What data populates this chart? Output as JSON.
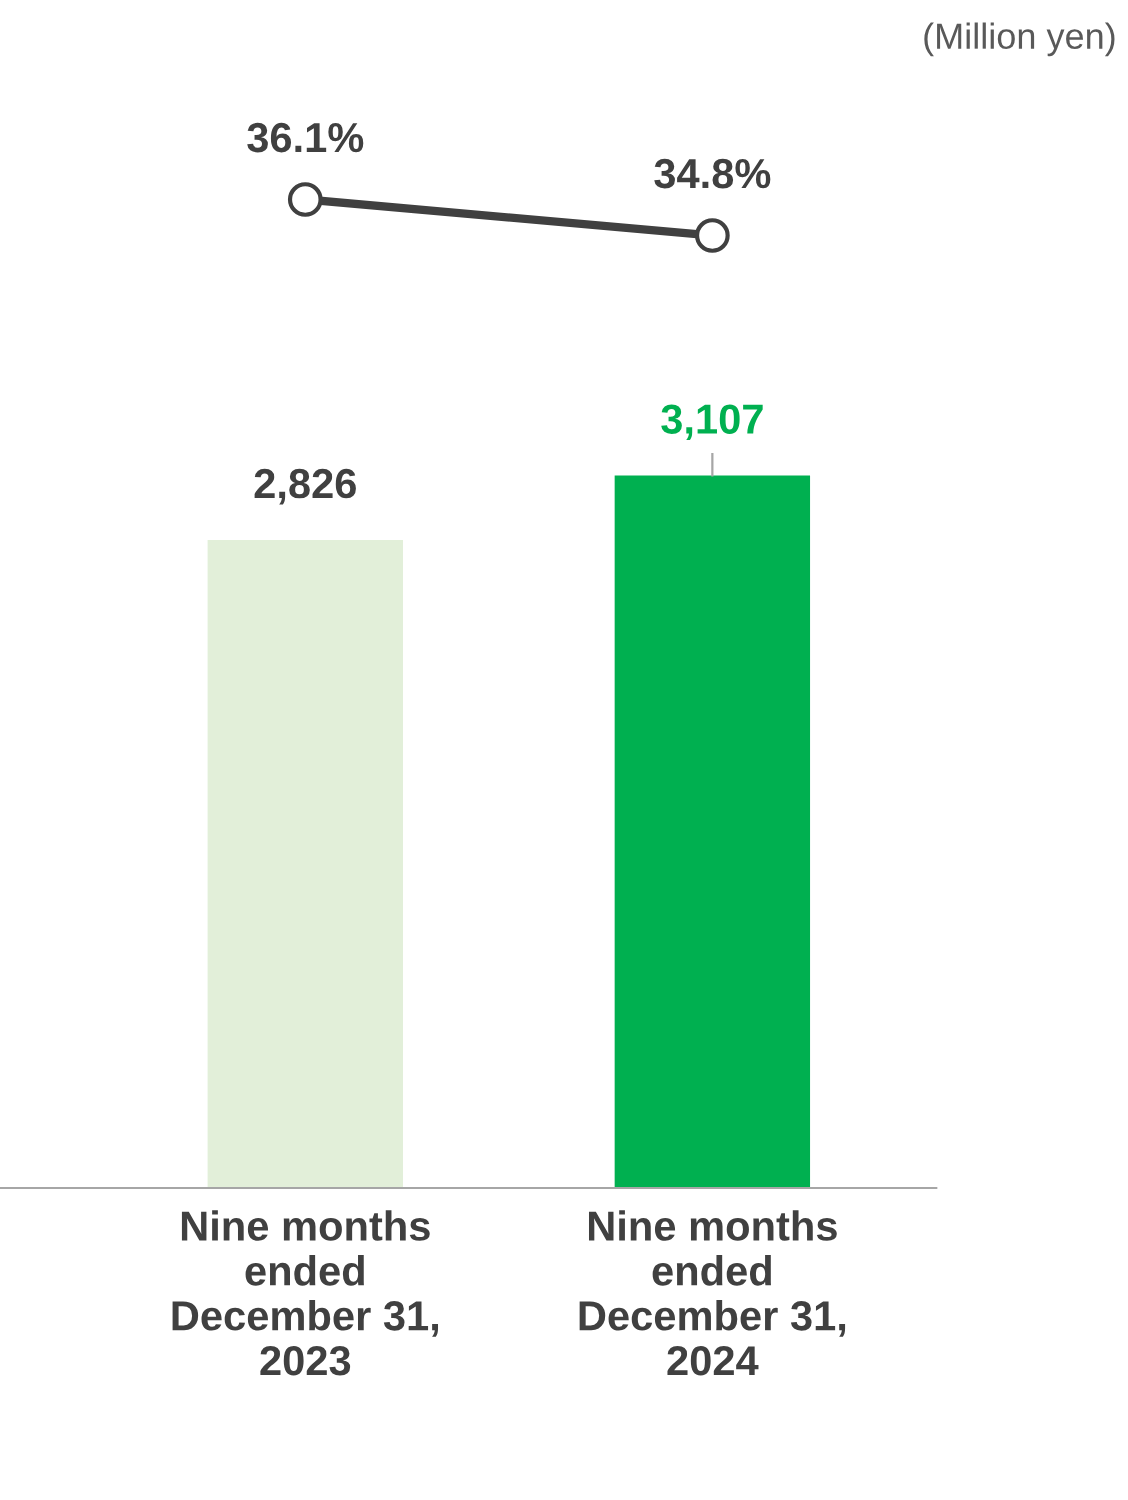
{
  "chart_data": [
    {
      "type": "line",
      "categories": [
        null,
        null
      ],
      "series": [
        {
          "color": "#404040",
          "values": [
            36.1,
            34.8
          ],
          "value_labels": [
            "36.1%",
            "34.8%"
          ]
        }
      ],
      "marker": "circle",
      "line_style": "solid",
      "tick_labels": false,
      "grid": false,
      "legend": false,
      "annotations": [
        "(Million yen)"
      ]
    },
    {
      "type": "bar",
      "categories": [
        "Nine months\nended\nDecember 31,\n2023",
        "Nine months\nended\nDecember 31,\n2024"
      ],
      "series": [
        {
          "colors": [
            "#e2efd9",
            "#00b050"
          ],
          "values": [
            2826,
            3107
          ],
          "value_labels": [
            "2,826",
            "3,107"
          ]
        }
      ],
      "tick_labels": "x",
      "grid": false,
      "legend": false
    }
  ]
}
